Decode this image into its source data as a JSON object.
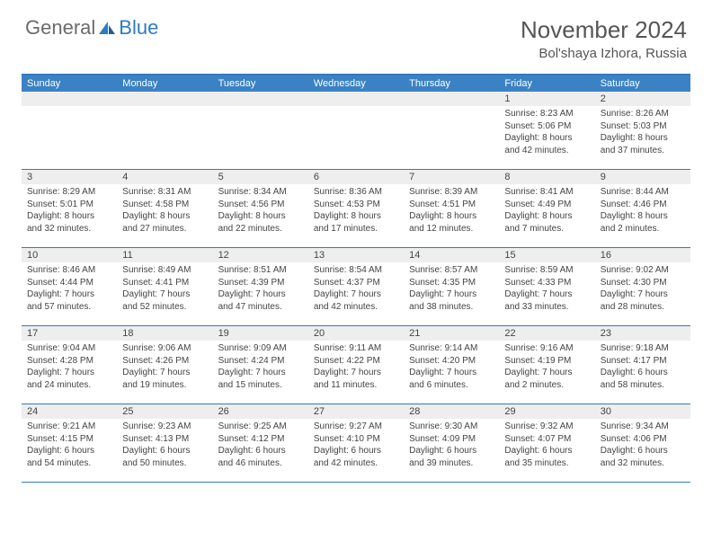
{
  "brand": {
    "general": "General",
    "blue": "Blue"
  },
  "title": "November 2024",
  "location": "Bol'shaya Izhora, Russia",
  "style": {
    "header_bg": "#3b82c4",
    "border_color": "#2f7bbf",
    "daynum_bg": "#eeeeee",
    "text_color": "#444444",
    "title_fontsize": 26,
    "location_fontsize": 15,
    "dow_fontsize": 11,
    "body_fontsize": 10
  },
  "dow": [
    "Sunday",
    "Monday",
    "Tuesday",
    "Wednesday",
    "Thursday",
    "Friday",
    "Saturday"
  ],
  "weeks": [
    [
      {
        "n": "",
        "sr": "",
        "ss": "",
        "dl": ""
      },
      {
        "n": "",
        "sr": "",
        "ss": "",
        "dl": ""
      },
      {
        "n": "",
        "sr": "",
        "ss": "",
        "dl": ""
      },
      {
        "n": "",
        "sr": "",
        "ss": "",
        "dl": ""
      },
      {
        "n": "",
        "sr": "",
        "ss": "",
        "dl": ""
      },
      {
        "n": "1",
        "sr": "Sunrise: 8:23 AM",
        "ss": "Sunset: 5:06 PM",
        "dl": "Daylight: 8 hours and 42 minutes."
      },
      {
        "n": "2",
        "sr": "Sunrise: 8:26 AM",
        "ss": "Sunset: 5:03 PM",
        "dl": "Daylight: 8 hours and 37 minutes."
      }
    ],
    [
      {
        "n": "3",
        "sr": "Sunrise: 8:29 AM",
        "ss": "Sunset: 5:01 PM",
        "dl": "Daylight: 8 hours and 32 minutes."
      },
      {
        "n": "4",
        "sr": "Sunrise: 8:31 AM",
        "ss": "Sunset: 4:58 PM",
        "dl": "Daylight: 8 hours and 27 minutes."
      },
      {
        "n": "5",
        "sr": "Sunrise: 8:34 AM",
        "ss": "Sunset: 4:56 PM",
        "dl": "Daylight: 8 hours and 22 minutes."
      },
      {
        "n": "6",
        "sr": "Sunrise: 8:36 AM",
        "ss": "Sunset: 4:53 PM",
        "dl": "Daylight: 8 hours and 17 minutes."
      },
      {
        "n": "7",
        "sr": "Sunrise: 8:39 AM",
        "ss": "Sunset: 4:51 PM",
        "dl": "Daylight: 8 hours and 12 minutes."
      },
      {
        "n": "8",
        "sr": "Sunrise: 8:41 AM",
        "ss": "Sunset: 4:49 PM",
        "dl": "Daylight: 8 hours and 7 minutes."
      },
      {
        "n": "9",
        "sr": "Sunrise: 8:44 AM",
        "ss": "Sunset: 4:46 PM",
        "dl": "Daylight: 8 hours and 2 minutes."
      }
    ],
    [
      {
        "n": "10",
        "sr": "Sunrise: 8:46 AM",
        "ss": "Sunset: 4:44 PM",
        "dl": "Daylight: 7 hours and 57 minutes."
      },
      {
        "n": "11",
        "sr": "Sunrise: 8:49 AM",
        "ss": "Sunset: 4:41 PM",
        "dl": "Daylight: 7 hours and 52 minutes."
      },
      {
        "n": "12",
        "sr": "Sunrise: 8:51 AM",
        "ss": "Sunset: 4:39 PM",
        "dl": "Daylight: 7 hours and 47 minutes."
      },
      {
        "n": "13",
        "sr": "Sunrise: 8:54 AM",
        "ss": "Sunset: 4:37 PM",
        "dl": "Daylight: 7 hours and 42 minutes."
      },
      {
        "n": "14",
        "sr": "Sunrise: 8:57 AM",
        "ss": "Sunset: 4:35 PM",
        "dl": "Daylight: 7 hours and 38 minutes."
      },
      {
        "n": "15",
        "sr": "Sunrise: 8:59 AM",
        "ss": "Sunset: 4:33 PM",
        "dl": "Daylight: 7 hours and 33 minutes."
      },
      {
        "n": "16",
        "sr": "Sunrise: 9:02 AM",
        "ss": "Sunset: 4:30 PM",
        "dl": "Daylight: 7 hours and 28 minutes."
      }
    ],
    [
      {
        "n": "17",
        "sr": "Sunrise: 9:04 AM",
        "ss": "Sunset: 4:28 PM",
        "dl": "Daylight: 7 hours and 24 minutes."
      },
      {
        "n": "18",
        "sr": "Sunrise: 9:06 AM",
        "ss": "Sunset: 4:26 PM",
        "dl": "Daylight: 7 hours and 19 minutes."
      },
      {
        "n": "19",
        "sr": "Sunrise: 9:09 AM",
        "ss": "Sunset: 4:24 PM",
        "dl": "Daylight: 7 hours and 15 minutes."
      },
      {
        "n": "20",
        "sr": "Sunrise: 9:11 AM",
        "ss": "Sunset: 4:22 PM",
        "dl": "Daylight: 7 hours and 11 minutes."
      },
      {
        "n": "21",
        "sr": "Sunrise: 9:14 AM",
        "ss": "Sunset: 4:20 PM",
        "dl": "Daylight: 7 hours and 6 minutes."
      },
      {
        "n": "22",
        "sr": "Sunrise: 9:16 AM",
        "ss": "Sunset: 4:19 PM",
        "dl": "Daylight: 7 hours and 2 minutes."
      },
      {
        "n": "23",
        "sr": "Sunrise: 9:18 AM",
        "ss": "Sunset: 4:17 PM",
        "dl": "Daylight: 6 hours and 58 minutes."
      }
    ],
    [
      {
        "n": "24",
        "sr": "Sunrise: 9:21 AM",
        "ss": "Sunset: 4:15 PM",
        "dl": "Daylight: 6 hours and 54 minutes."
      },
      {
        "n": "25",
        "sr": "Sunrise: 9:23 AM",
        "ss": "Sunset: 4:13 PM",
        "dl": "Daylight: 6 hours and 50 minutes."
      },
      {
        "n": "26",
        "sr": "Sunrise: 9:25 AM",
        "ss": "Sunset: 4:12 PM",
        "dl": "Daylight: 6 hours and 46 minutes."
      },
      {
        "n": "27",
        "sr": "Sunrise: 9:27 AM",
        "ss": "Sunset: 4:10 PM",
        "dl": "Daylight: 6 hours and 42 minutes."
      },
      {
        "n": "28",
        "sr": "Sunrise: 9:30 AM",
        "ss": "Sunset: 4:09 PM",
        "dl": "Daylight: 6 hours and 39 minutes."
      },
      {
        "n": "29",
        "sr": "Sunrise: 9:32 AM",
        "ss": "Sunset: 4:07 PM",
        "dl": "Daylight: 6 hours and 35 minutes."
      },
      {
        "n": "30",
        "sr": "Sunrise: 9:34 AM",
        "ss": "Sunset: 4:06 PM",
        "dl": "Daylight: 6 hours and 32 minutes."
      }
    ]
  ]
}
